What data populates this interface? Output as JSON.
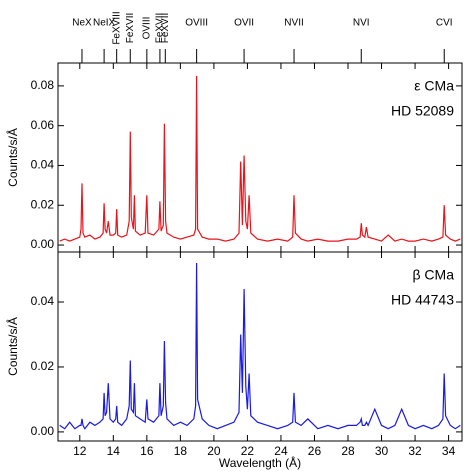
{
  "chart_data": [
    {
      "type": "line",
      "ylabel": "Counts/s/Å",
      "annotations": [
        "ε CMa",
        "HD 52089"
      ],
      "annotation_color": "#e8141b",
      "line_ids": [
        {
          "label": "NeX",
          "wavelength": 12.13,
          "orientation": "horizontal"
        },
        {
          "label": "NeIX",
          "wavelength": 13.45,
          "orientation": "horizontal"
        },
        {
          "label": "FeXVIII",
          "wavelength": 14.2,
          "orientation": "vertical"
        },
        {
          "label": "FeXVII",
          "wavelength": 15.01,
          "orientation": "vertical"
        },
        {
          "label": "OVIII",
          "wavelength": 16.0,
          "orientation": "vertical"
        },
        {
          "label": "FeXVII",
          "wavelength": 16.78,
          "orientation": "vertical"
        },
        {
          "label": "FeXVII",
          "wavelength": 17.1,
          "orientation": "vertical"
        },
        {
          "label": "OVIII",
          "wavelength": 18.97,
          "orientation": "horizontal"
        },
        {
          "label": "OVII",
          "wavelength": 21.8,
          "orientation": "horizontal"
        },
        {
          "label": "NVII",
          "wavelength": 24.78,
          "orientation": "horizontal"
        },
        {
          "label": "NVI",
          "wavelength": 28.79,
          "orientation": "horizontal"
        },
        {
          "label": "CVI",
          "wavelength": 33.74,
          "orientation": "horizontal"
        }
      ],
      "xlim": [
        10.7,
        34.8
      ],
      "xticks": [
        12,
        14,
        16,
        18,
        20,
        22,
        24,
        26,
        28,
        30,
        32,
        34
      ],
      "ylim": [
        -0.0035,
        0.0915
      ],
      "yticks": [
        {
          "value": 0,
          "label": "0.00"
        },
        {
          "value": 0.02,
          "label": "0.02"
        },
        {
          "value": 0.04,
          "label": "0.04"
        },
        {
          "value": 0.06,
          "label": "0.06"
        },
        {
          "value": 0.08,
          "label": "0.08"
        }
      ],
      "x": [
        10.8,
        11.1,
        11.4,
        11.7,
        12.0,
        12.07,
        12.13,
        12.19,
        12.3,
        12.6,
        12.9,
        13.2,
        13.39,
        13.45,
        13.51,
        13.6,
        13.7,
        13.8,
        14.0,
        14.14,
        14.2,
        14.26,
        14.5,
        14.8,
        14.95,
        15.01,
        15.07,
        15.2,
        15.26,
        15.32,
        15.6,
        15.9,
        16.0,
        16.07,
        16.4,
        16.72,
        16.78,
        16.85,
        16.98,
        17.05,
        17.12,
        17.2,
        17.6,
        18.0,
        18.4,
        18.8,
        18.91,
        18.97,
        19.03,
        19.3,
        19.7,
        20.2,
        20.7,
        21.2,
        21.5,
        21.6,
        21.7,
        21.8,
        21.9,
        22.0,
        22.1,
        22.2,
        22.6,
        23.2,
        23.8,
        24.4,
        24.7,
        24.78,
        24.86,
        25.2,
        25.6,
        26.2,
        26.8,
        27.4,
        28.0,
        28.5,
        28.72,
        28.79,
        28.86,
        29.0,
        29.1,
        29.2,
        29.6,
        30.0,
        30.4,
        30.8,
        31.2,
        31.6,
        32.0,
        32.5,
        33.0,
        33.4,
        33.66,
        33.74,
        33.82,
        34.1,
        34.4,
        34.7
      ],
      "series": [
        {
          "color": "#e8141b",
          "values": [
            0.002,
            0.003,
            0.002,
            0.003,
            0.004,
            0.008,
            0.031,
            0.006,
            0.004,
            0.005,
            0.003,
            0.004,
            0.006,
            0.021,
            0.008,
            0.006,
            0.012,
            0.005,
            0.005,
            0.006,
            0.018,
            0.005,
            0.004,
            0.005,
            0.012,
            0.057,
            0.014,
            0.008,
            0.025,
            0.007,
            0.005,
            0.006,
            0.025,
            0.006,
            0.005,
            0.008,
            0.022,
            0.007,
            0.01,
            0.061,
            0.012,
            0.006,
            0.004,
            0.003,
            0.004,
            0.005,
            0.008,
            0.085,
            0.008,
            0.004,
            0.003,
            0.003,
            0.002,
            0.003,
            0.006,
            0.042,
            0.01,
            0.045,
            0.012,
            0.008,
            0.025,
            0.006,
            0.003,
            0.002,
            0.003,
            0.002,
            0.004,
            0.025,
            0.006,
            0.003,
            0.002,
            0.003,
            0.002,
            0.002,
            0.003,
            0.003,
            0.004,
            0.011,
            0.005,
            0.004,
            0.009,
            0.004,
            0.003,
            0.002,
            0.005,
            0.002,
            0.003,
            0.002,
            0.002,
            0.003,
            0.002,
            0.003,
            0.004,
            0.02,
            0.005,
            0.003,
            0.002,
            0.003
          ]
        }
      ]
    },
    {
      "type": "line",
      "ylabel": "Counts/s/Å",
      "xlabel": "Wavelength (Å)",
      "annotations": [
        "β CMa",
        "HD 44743"
      ],
      "annotation_color": "#1a1ae0",
      "xlim": [
        10.7,
        34.8
      ],
      "xticks": [
        12,
        14,
        16,
        18,
        20,
        22,
        24,
        26,
        28,
        30,
        32,
        34
      ],
      "ylim": [
        -0.0028,
        0.0554
      ],
      "yticks": [
        {
          "value": 0,
          "label": "0.00"
        },
        {
          "value": 0.02,
          "label": "0.02"
        },
        {
          "value": 0.04,
          "label": "0.04"
        }
      ],
      "x": [
        10.8,
        11.1,
        11.4,
        11.7,
        12.0,
        12.07,
        12.13,
        12.19,
        12.3,
        12.6,
        12.9,
        13.2,
        13.39,
        13.45,
        13.51,
        13.6,
        13.7,
        13.8,
        14.0,
        14.14,
        14.2,
        14.26,
        14.5,
        14.8,
        14.95,
        15.01,
        15.07,
        15.2,
        15.26,
        15.32,
        15.6,
        15.9,
        16.0,
        16.07,
        16.4,
        16.72,
        16.78,
        16.85,
        16.98,
        17.05,
        17.12,
        17.2,
        17.6,
        18.0,
        18.4,
        18.8,
        18.91,
        18.97,
        19.03,
        19.3,
        19.7,
        20.2,
        20.7,
        21.2,
        21.5,
        21.6,
        21.7,
        21.8,
        21.9,
        22.0,
        22.1,
        22.2,
        22.6,
        23.2,
        23.8,
        24.4,
        24.7,
        24.78,
        24.86,
        25.2,
        25.6,
        26.2,
        26.8,
        27.4,
        28.0,
        28.5,
        28.72,
        28.79,
        28.86,
        29.0,
        29.1,
        29.2,
        29.6,
        30.0,
        30.4,
        30.8,
        31.2,
        31.6,
        32.0,
        32.5,
        33.0,
        33.4,
        33.66,
        33.74,
        33.82,
        34.1,
        34.4,
        34.7
      ],
      "series": [
        {
          "color": "#1a1ae0",
          "values": [
            0.002,
            0.001,
            0.003,
            0.001,
            0.002,
            0.002,
            0.004,
            0.002,
            0.001,
            0.003,
            0.002,
            0.003,
            0.004,
            0.012,
            0.005,
            0.006,
            0.015,
            0.004,
            0.003,
            0.004,
            0.008,
            0.003,
            0.002,
            0.004,
            0.008,
            0.022,
            0.007,
            0.006,
            0.015,
            0.005,
            0.004,
            0.003,
            0.01,
            0.004,
            0.003,
            0.005,
            0.015,
            0.005,
            0.008,
            0.028,
            0.009,
            0.004,
            0.002,
            0.003,
            0.002,
            0.004,
            0.008,
            0.052,
            0.01,
            0.004,
            0.002,
            0.001,
            0.002,
            0.003,
            0.006,
            0.03,
            0.012,
            0.044,
            0.014,
            0.007,
            0.018,
            0.005,
            0.003,
            0.002,
            0.001,
            0.002,
            0.003,
            0.012,
            0.003,
            0.002,
            0.004,
            0.001,
            0.002,
            0.001,
            0.002,
            0.002,
            0.003,
            0.004,
            0.002,
            0.002,
            0.003,
            0.002,
            0.007,
            0.002,
            0.001,
            0.002,
            0.007,
            0.002,
            0.001,
            0.002,
            0.001,
            0.002,
            0.004,
            0.018,
            0.005,
            0.002,
            0.001,
            0.002
          ]
        }
      ]
    }
  ]
}
